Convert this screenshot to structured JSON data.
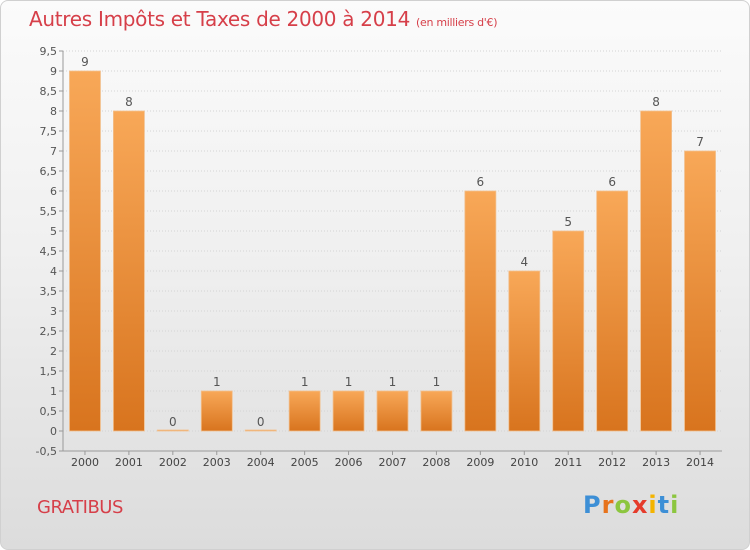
{
  "header": {
    "title": "Autres Impôts et Taxes de 2000 à 2014",
    "subtitle": "(en milliers d'€)"
  },
  "footer": {
    "commune": "GRATIBUS",
    "logo_letters": [
      "P",
      "r",
      "o",
      "x",
      "i",
      "t",
      "i"
    ]
  },
  "colors": {
    "title": "#d63f49",
    "bar_top": "#f8a858",
    "bar_bottom": "#d8741e",
    "logo": [
      "#3d8fd6",
      "#e7731c",
      "#8cc63f",
      "#e53b2b",
      "#f4b400",
      "#3d8fd6",
      "#8cc63f"
    ]
  },
  "chart_data": {
    "type": "bar",
    "categories": [
      "2000",
      "2001",
      "2002",
      "2003",
      "2004",
      "2005",
      "2006",
      "2007",
      "2008",
      "2009",
      "2010",
      "2011",
      "2012",
      "2013",
      "2014"
    ],
    "values": [
      9,
      8,
      0,
      1,
      0,
      1,
      1,
      1,
      1,
      6,
      4,
      5,
      6,
      8,
      7
    ],
    "data_labels": [
      "9",
      "8",
      "0",
      "1",
      "0",
      "1",
      "1",
      "1",
      "1",
      "6",
      "4",
      "5",
      "6",
      "8",
      "7"
    ],
    "ylim": [
      -0.5,
      9.5
    ],
    "yticks": [
      "-0,5",
      "0",
      "0,5",
      "1",
      "1,5",
      "2",
      "2,5",
      "3",
      "3,5",
      "4",
      "4,5",
      "5",
      "5,5",
      "6",
      "6,5",
      "7",
      "7,5",
      "8",
      "8,5",
      "9",
      "9,5"
    ],
    "ytick_values": [
      -0.5,
      0,
      0.5,
      1,
      1.5,
      2,
      2.5,
      3,
      3.5,
      4,
      4.5,
      5,
      5.5,
      6,
      6.5,
      7,
      7.5,
      8,
      8.5,
      9,
      9.5
    ],
    "grid": true,
    "title": "Autres Impôts et Taxes de 2000 à 2014",
    "xlabel": "",
    "ylabel": ""
  }
}
